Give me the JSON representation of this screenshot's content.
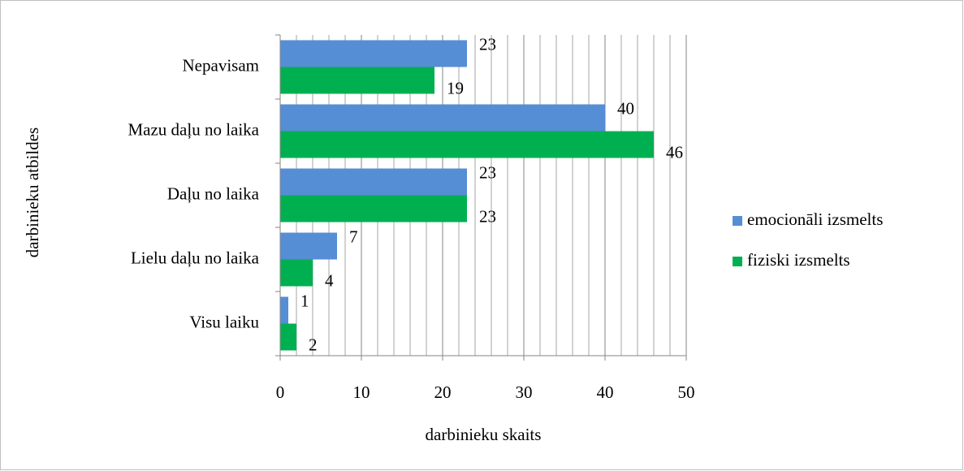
{
  "chart_data": {
    "type": "hbar",
    "categories": [
      "Nepavisam",
      "Mazu daļu no laika",
      "Daļu no laika",
      "Lielu daļu no laika",
      "Visu laiku"
    ],
    "series": [
      {
        "name": "emocionāli izsmelts",
        "color": "#558ed5",
        "values": [
          23,
          40,
          23,
          7,
          1
        ]
      },
      {
        "name": "fiziski izsmelts",
        "color": "#00b050",
        "values": [
          19,
          46,
          23,
          4,
          2
        ]
      }
    ],
    "xlabel": "darbinieku skaits",
    "ylabel": "darbinieku atbildes",
    "xlim": [
      0,
      50
    ],
    "xticks": [
      0,
      10,
      20,
      30,
      40,
      50
    ],
    "grid": true,
    "minor_grid_interval": 2,
    "legend": "right"
  }
}
